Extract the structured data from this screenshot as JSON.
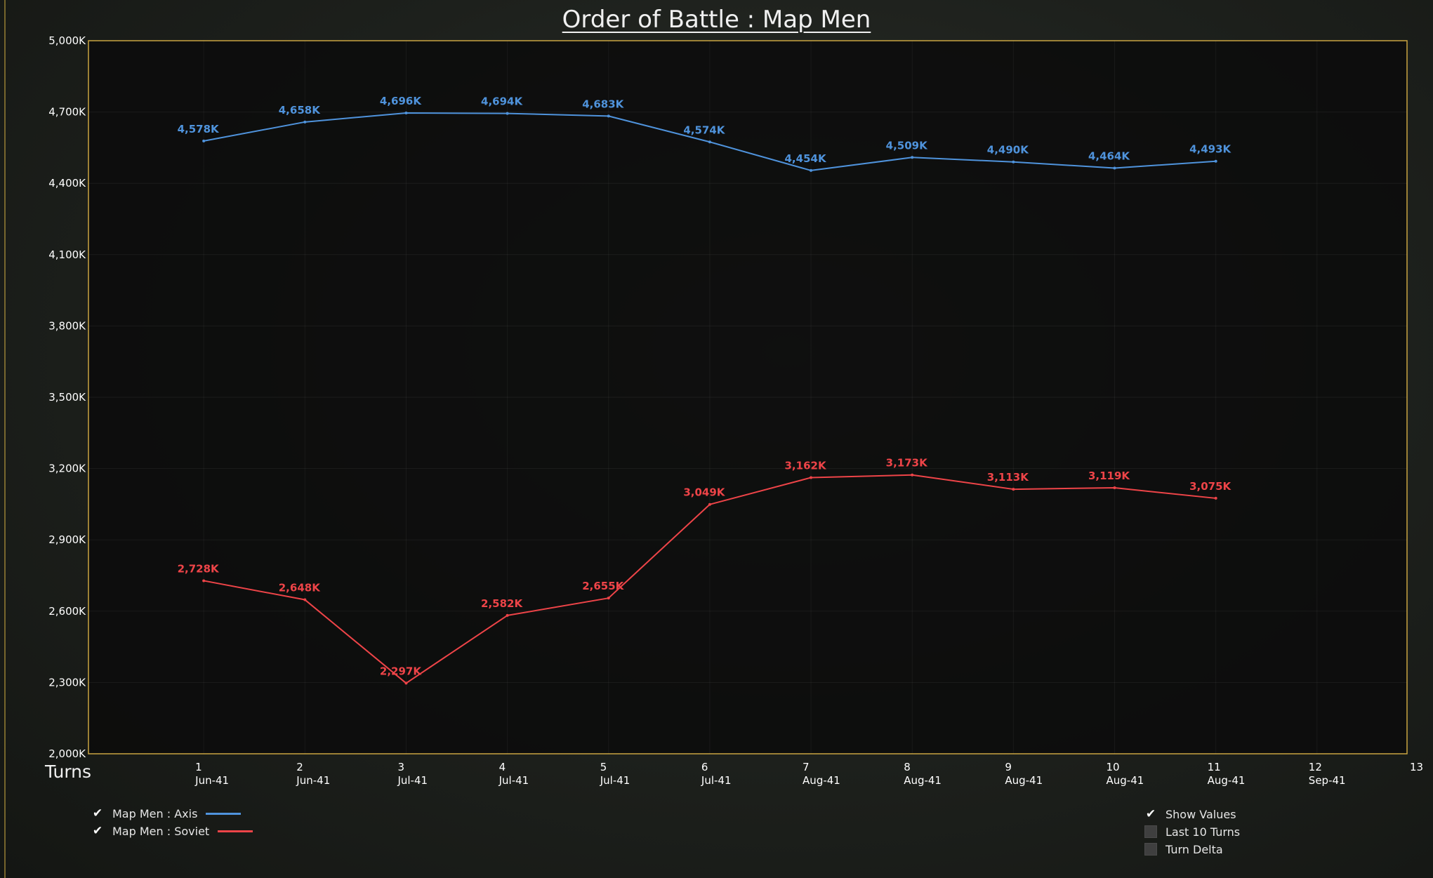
{
  "title": "Order of Battle : Map Men",
  "x_axis_caption": "Turns",
  "chart_data": {
    "type": "line",
    "title": "Order of Battle : Map Men",
    "xlabel": "Turns",
    "ylabel": "",
    "ylim": [
      2000,
      5000
    ],
    "xlim": [
      0,
      13
    ],
    "y_ticks": [
      2000,
      2300,
      2600,
      2900,
      3200,
      3500,
      3800,
      4100,
      4400,
      4700,
      5000
    ],
    "y_tick_labels": [
      "2,000K",
      "2,300K",
      "2,600K",
      "2,900K",
      "3,200K",
      "3,500K",
      "3,800K",
      "4,100K",
      "4,400K",
      "4,700K",
      "5,000K"
    ],
    "x_ticks": [
      1,
      2,
      3,
      4,
      5,
      6,
      7,
      8,
      9,
      10,
      11,
      12,
      13
    ],
    "x_tick_labels": [
      {
        "turn": "1",
        "date": "Jun-41"
      },
      {
        "turn": "2",
        "date": "Jun-41"
      },
      {
        "turn": "3",
        "date": "Jul-41"
      },
      {
        "turn": "4",
        "date": "Jul-41"
      },
      {
        "turn": "5",
        "date": "Jul-41"
      },
      {
        "turn": "6",
        "date": "Jul-41"
      },
      {
        "turn": "7",
        "date": "Aug-41"
      },
      {
        "turn": "8",
        "date": "Aug-41"
      },
      {
        "turn": "9",
        "date": "Aug-41"
      },
      {
        "turn": "10",
        "date": "Aug-41"
      },
      {
        "turn": "11",
        "date": "Aug-41"
      },
      {
        "turn": "12",
        "date": "Sep-41"
      },
      {
        "turn": "13",
        "date": ""
      }
    ],
    "grid": true,
    "legend_position": "bottom-left",
    "series": [
      {
        "name": "Map Men : Axis",
        "color": "#4f93dc",
        "x": [
          1,
          2,
          3,
          4,
          5,
          6,
          7,
          8,
          9,
          10,
          11
        ],
        "values": [
          4578,
          4658,
          4696,
          4694,
          4683,
          4574,
          4454,
          4509,
          4490,
          4464,
          4493
        ],
        "labels": [
          "4,578K",
          "4,658K",
          "4,696K",
          "4,694K",
          "4,683K",
          "4,574K",
          "4,454K",
          "4,509K",
          "4,490K",
          "4,464K",
          "4,493K"
        ]
      },
      {
        "name": "Map Men : Soviet",
        "color": "#ee4448",
        "x": [
          1,
          2,
          3,
          4,
          5,
          6,
          7,
          8,
          9,
          10,
          11
        ],
        "values": [
          2728,
          2648,
          2297,
          2582,
          2655,
          3049,
          3162,
          3173,
          3113,
          3119,
          3075
        ],
        "labels": [
          "2,728K",
          "2,648K",
          "2,297K",
          "2,582K",
          "2,655K",
          "3,049K",
          "3,162K",
          "3,173K",
          "3,113K",
          "3,119K",
          "3,075K"
        ]
      }
    ]
  },
  "colors": {
    "plot_border": "#c9a441",
    "plot_bg": "#0b0b0b",
    "axis_text": "#ffffff"
  },
  "legend": {
    "items": [
      {
        "label": "Map Men : Axis",
        "checked": true,
        "color": "#4f93dc"
      },
      {
        "label": "Map Men : Soviet",
        "checked": true,
        "color": "#ee4448"
      }
    ]
  },
  "options": {
    "items": [
      {
        "label": "Show Values",
        "checked": true
      },
      {
        "label": "Last 10 Turns",
        "checked": false
      },
      {
        "label": "Turn Delta",
        "checked": false
      }
    ]
  },
  "icons": {
    "checked": "checkmark-icon",
    "unchecked": "empty-checkbox-icon"
  }
}
